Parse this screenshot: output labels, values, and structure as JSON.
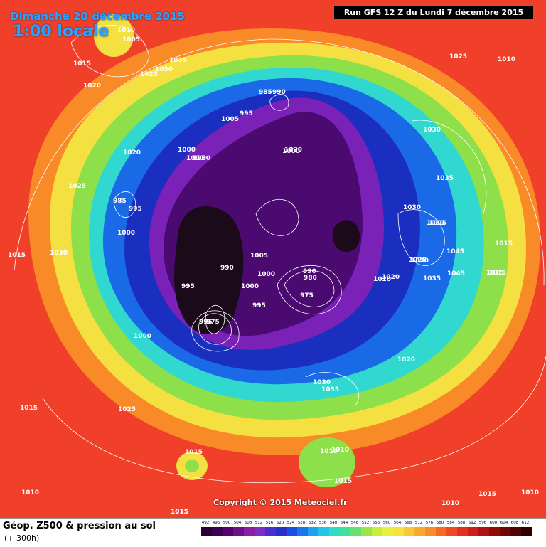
{
  "header": {
    "date": "Dimanche 20 décembre 2015",
    "time": "1:00 locale",
    "run": "Run GFS 12 Z du Lundi 7 décembre 2015"
  },
  "copyright": "Copyright © 2015 Meteociel.fr",
  "footer": {
    "title": "Géop. Z500 & pression au sol",
    "lead": "(+ 300h)"
  },
  "legend": {
    "unit_values": [
      "492",
      "496",
      "500",
      "504",
      "508",
      "512",
      "516",
      "520",
      "524",
      "528",
      "532",
      "536",
      "540",
      "544",
      "548",
      "552",
      "556",
      "560",
      "564",
      "568",
      "572",
      "576",
      "580",
      "584",
      "588",
      "592",
      "596",
      "600",
      "604",
      "608",
      "612"
    ],
    "colors": [
      "#2a0033",
      "#3d0050",
      "#55006e",
      "#6e0f8a",
      "#8a1fa6",
      "#7b2fc4",
      "#4a2fd0",
      "#2630c8",
      "#1a4fe0",
      "#1a74ec",
      "#1fa0f0",
      "#22c4e8",
      "#2fdcc8",
      "#3ee0a0",
      "#66e070",
      "#98e64a",
      "#c8ee40",
      "#e8f040",
      "#f8e040",
      "#f8c838",
      "#f8aa30",
      "#f88c28",
      "#f46a24",
      "#ec4a22",
      "#e03020",
      "#cc1c1c",
      "#b01212",
      "#900a0a",
      "#700808",
      "#500404",
      "#300000"
    ]
  },
  "pressure_labels": [
    "1010",
    "1005",
    "1015",
    "1035",
    "1025",
    "1030",
    "1020",
    "1005",
    "995",
    "985",
    "990",
    "1000",
    "1020",
    "995",
    "1000",
    "1025",
    "985",
    "995",
    "1000",
    "1030",
    "1025",
    "1015",
    "1010",
    "1000",
    "1020",
    "990",
    "1000",
    "1005",
    "1000",
    "995",
    "995",
    "975",
    "990",
    "980",
    "1000",
    "995",
    "975",
    "1020",
    "1030",
    "1035",
    "1030",
    "1015",
    "1045",
    "1030",
    "1015",
    "1045",
    "1015",
    "1035",
    "1020",
    "1030",
    "1020",
    "1000",
    "1010",
    "1030",
    "1035",
    "1015",
    "1025",
    "1015",
    "1010",
    "1015",
    "1010",
    "1010",
    "1015",
    "1015",
    "1010",
    "1025",
    "1015",
    "1005"
  ],
  "map_colors": {
    "outer": "#f0402a",
    "orange": "#f88a28",
    "yellow": "#f4e040",
    "green": "#8ee04a",
    "cyan": "#30d8d0",
    "blue": "#1a6ae8",
    "deepblue": "#1a2fc0",
    "violet": "#7a22b8",
    "purple": "#4a0a70",
    "black": "#1a0a1a"
  }
}
